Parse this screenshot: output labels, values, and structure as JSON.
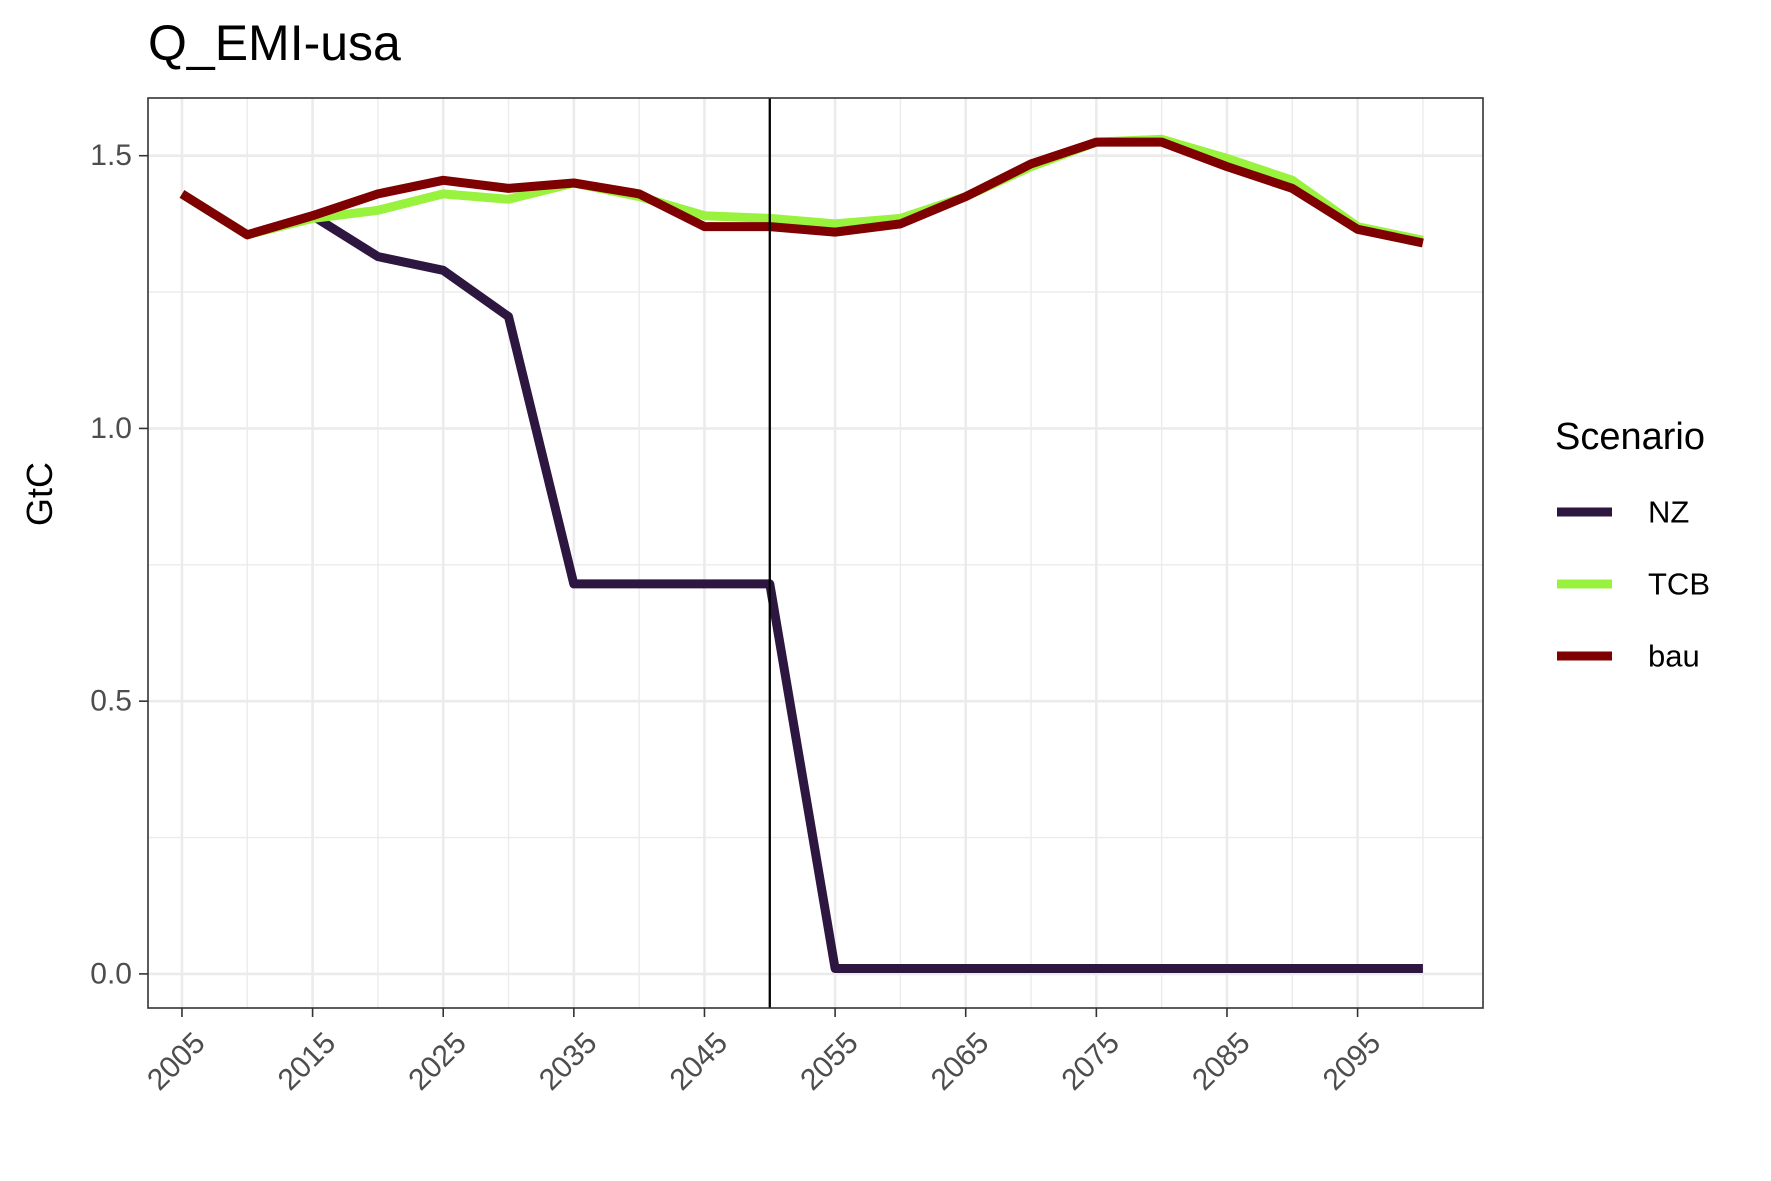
{
  "chart_data": {
    "type": "line",
    "title": "Q_EMI-usa",
    "xlabel": "",
    "ylabel": "GtC",
    "xlim": [
      2002.4,
      2104.6
    ],
    "ylim": [
      -0.0625,
      1.6058
    ],
    "x": [
      2005,
      2010,
      2015,
      2020,
      2025,
      2030,
      2035,
      2040,
      2045,
      2050,
      2055,
      2060,
      2065,
      2070,
      2075,
      2080,
      2085,
      2090,
      2095,
      2100
    ],
    "x_ticks": [
      2005,
      2015,
      2025,
      2035,
      2045,
      2055,
      2065,
      2075,
      2085,
      2095
    ],
    "x_tick_labels": [
      "2005",
      "2015",
      "2025",
      "2035",
      "2045",
      "2055",
      "2065",
      "2075",
      "2085",
      "2095"
    ],
    "y_ticks": [
      0.0,
      0.5,
      1.0,
      1.5
    ],
    "y_tick_labels": [
      "0.0",
      "0.5",
      "1.0",
      "1.5"
    ],
    "grid": true,
    "vline_x": 2050,
    "legend": {
      "title": "Scenario",
      "position": "right"
    },
    "series": [
      {
        "name": "NZ",
        "color": "#2d1640",
        "values": [
          1.43,
          1.355,
          1.39,
          1.315,
          1.29,
          1.205,
          0.715,
          0.715,
          0.715,
          0.715,
          0.01,
          0.01,
          0.01,
          0.01,
          0.01,
          0.01,
          0.01,
          0.01,
          0.01,
          0.01
        ]
      },
      {
        "name": "TCB",
        "color": "#99f23d",
        "values": [
          1.43,
          1.355,
          1.385,
          1.4,
          1.43,
          1.42,
          1.45,
          1.425,
          1.39,
          1.385,
          1.375,
          1.385,
          1.425,
          1.48,
          1.525,
          1.53,
          1.495,
          1.455,
          1.37,
          1.345
        ]
      },
      {
        "name": "bau",
        "color": "#7f0000",
        "values": [
          1.43,
          1.355,
          1.39,
          1.43,
          1.455,
          1.44,
          1.45,
          1.43,
          1.37,
          1.37,
          1.36,
          1.375,
          1.425,
          1.485,
          1.525,
          1.525,
          1.48,
          1.44,
          1.365,
          1.34
        ]
      }
    ]
  }
}
